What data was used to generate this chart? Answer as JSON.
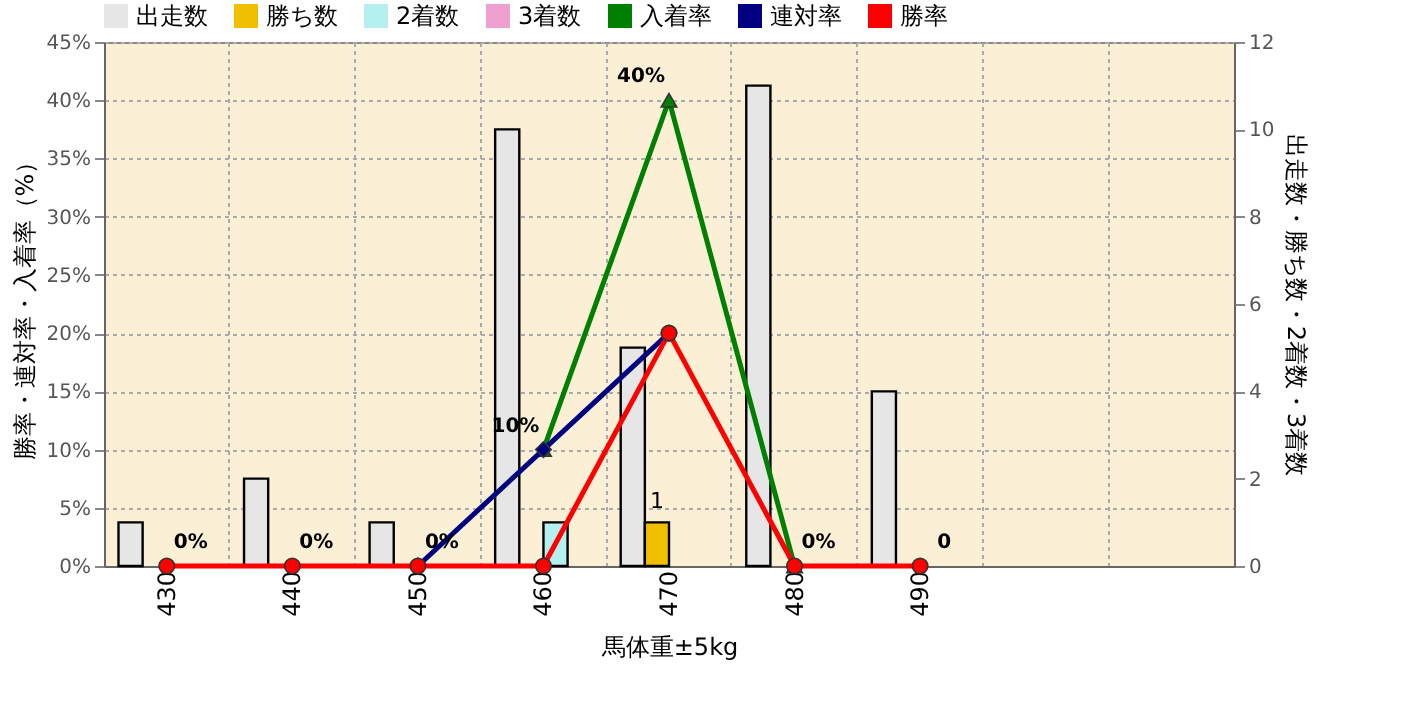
{
  "chart_data": {
    "type": "bar",
    "categories": [
      "430",
      "440",
      "450",
      "460",
      "470",
      "480",
      "490",
      null,
      null
    ],
    "xlabel": "馬体重±5kg",
    "ylabel": "勝率・連対率・入着率（%）",
    "y2label": "出走数・勝ち数・2着数・3着数",
    "series": [
      {
        "name": "出走数",
        "axis": "y2",
        "color": "#e6e6e6",
        "values": [
          1,
          2,
          1,
          10,
          5,
          11,
          4,
          null,
          null
        ]
      },
      {
        "name": "勝ち数",
        "axis": "y2",
        "color": "#f0c000",
        "values": [
          null,
          null,
          null,
          null,
          1,
          null,
          null,
          null,
          null
        ],
        "value_labels": [
          null,
          null,
          null,
          null,
          "1",
          null,
          null,
          null,
          null
        ]
      },
      {
        "name": "2着数",
        "axis": "y2",
        "color": "#b4f0f0",
        "values": [
          null,
          null,
          null,
          1,
          null,
          null,
          null,
          null,
          null
        ]
      },
      {
        "name": "3着数",
        "axis": "y2",
        "color": "#f0a0d0",
        "values": [
          null,
          null,
          null,
          null,
          null,
          null,
          null,
          null,
          null
        ]
      },
      {
        "name": "入着率",
        "type": "line",
        "marker": "triangle",
        "color": "#008000",
        "values": [
          null,
          null,
          null,
          10,
          40,
          0,
          null,
          null,
          null
        ],
        "value_labels": [
          null,
          null,
          null,
          "10%",
          "40%",
          null,
          null,
          null,
          null
        ]
      },
      {
        "name": "連対率",
        "type": "line",
        "marker": "diamond",
        "color": "#000080",
        "values": [
          null,
          null,
          0,
          10,
          20,
          null,
          null,
          null,
          null
        ]
      },
      {
        "name": "勝率",
        "type": "line",
        "marker": "circle",
        "color": "#ff0000",
        "values": [
          0,
          0,
          0,
          0,
          20,
          0,
          0,
          null,
          null
        ],
        "value_labels": [
          "0%",
          "0%",
          "0%",
          null,
          null,
          "0%",
          "0",
          null,
          null
        ]
      }
    ],
    "ylim": [
      0,
      45
    ],
    "yticks": [
      {
        "value": 0,
        "label": "0%"
      },
      {
        "value": 5,
        "label": "5%"
      },
      {
        "value": 10,
        "label": "10%"
      },
      {
        "value": 15,
        "label": "15%"
      },
      {
        "value": 20,
        "label": "20%"
      },
      {
        "value": 25,
        "label": "25%"
      },
      {
        "value": 30,
        "label": "30%"
      },
      {
        "value": 35,
        "label": "35%"
      },
      {
        "value": 40,
        "label": "40%"
      },
      {
        "value": 45,
        "label": "45%"
      }
    ],
    "y2lim": [
      0,
      12
    ],
    "y2ticks": [
      0,
      2,
      4,
      6,
      8,
      10,
      12
    ],
    "grid": true,
    "legend": "top"
  }
}
